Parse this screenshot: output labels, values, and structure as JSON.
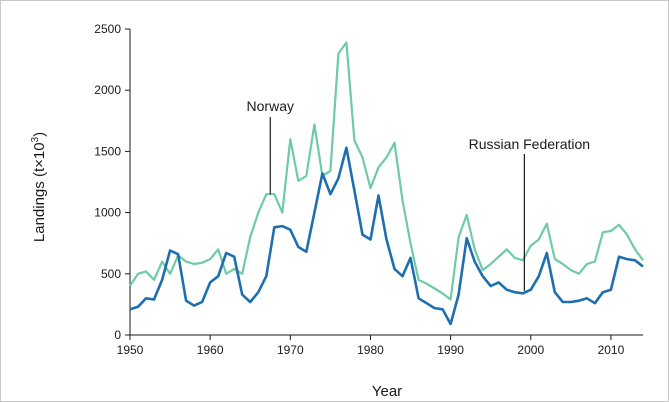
{
  "chart_data": {
    "type": "line",
    "title": "",
    "xlabel": "Year",
    "ylabel": "Landings (t×10",
    "ylabel_superscript": "3",
    "ylabel_suffix": ")",
    "xlim": [
      1950,
      2014
    ],
    "ylim": [
      0,
      2500
    ],
    "xticks": [
      1950,
      1960,
      1970,
      1980,
      1990,
      2000,
      2010
    ],
    "yticks": [
      0,
      500,
      1000,
      1500,
      2000,
      2500
    ],
    "grid": false,
    "legend": "none",
    "x": [
      1950,
      1951,
      1952,
      1953,
      1954,
      1955,
      1956,
      1957,
      1958,
      1959,
      1960,
      1961,
      1962,
      1963,
      1964,
      1965,
      1966,
      1967,
      1968,
      1969,
      1970,
      1971,
      1972,
      1973,
      1974,
      1975,
      1976,
      1977,
      1978,
      1979,
      1980,
      1981,
      1982,
      1983,
      1984,
      1985,
      1986,
      1987,
      1988,
      1989,
      1990,
      1991,
      1992,
      1993,
      1994,
      1995,
      1996,
      1997,
      1998,
      1999,
      2000,
      2001,
      2002,
      2003,
      2004,
      2005,
      2006,
      2007,
      2008,
      2009,
      2010,
      2011,
      2012,
      2013,
      2014
    ],
    "series": [
      {
        "name": "Norway",
        "color": "#6fcaa6",
        "values": [
          400,
          500,
          520,
          450,
          600,
          500,
          650,
          600,
          580,
          590,
          620,
          700,
          500,
          540,
          500,
          800,
          1000,
          1150,
          1150,
          1000,
          1600,
          1260,
          1300,
          1720,
          1300,
          1340,
          2300,
          2390,
          1590,
          1450,
          1200,
          1370,
          1450,
          1570,
          1100,
          750,
          450,
          420,
          380,
          340,
          290,
          800,
          980,
          700,
          530,
          580,
          640,
          700,
          630,
          610,
          730,
          780,
          910,
          620,
          580,
          530,
          500,
          580,
          600,
          840,
          850,
          900,
          820,
          700,
          610
        ],
        "annotation": {
          "label": "Norway",
          "x": 1967.5,
          "y": 1150
        }
      },
      {
        "name": "Russian Federation",
        "color": "#1f6fb0",
        "values": [
          210,
          230,
          300,
          290,
          450,
          690,
          660,
          280,
          240,
          270,
          430,
          480,
          670,
          640,
          330,
          270,
          350,
          480,
          880,
          890,
          860,
          720,
          680,
          1000,
          1320,
          1150,
          1280,
          1530,
          1180,
          820,
          780,
          1140,
          780,
          540,
          480,
          630,
          300,
          260,
          220,
          210,
          90,
          330,
          790,
          600,
          480,
          400,
          430,
          370,
          350,
          340,
          370,
          480,
          670,
          350,
          270,
          270,
          280,
          300,
          260,
          350,
          370,
          640,
          620,
          610,
          560
        ],
        "annotation": {
          "label": "Russian Federation",
          "x": 1999.2,
          "y": 360
        }
      }
    ]
  }
}
